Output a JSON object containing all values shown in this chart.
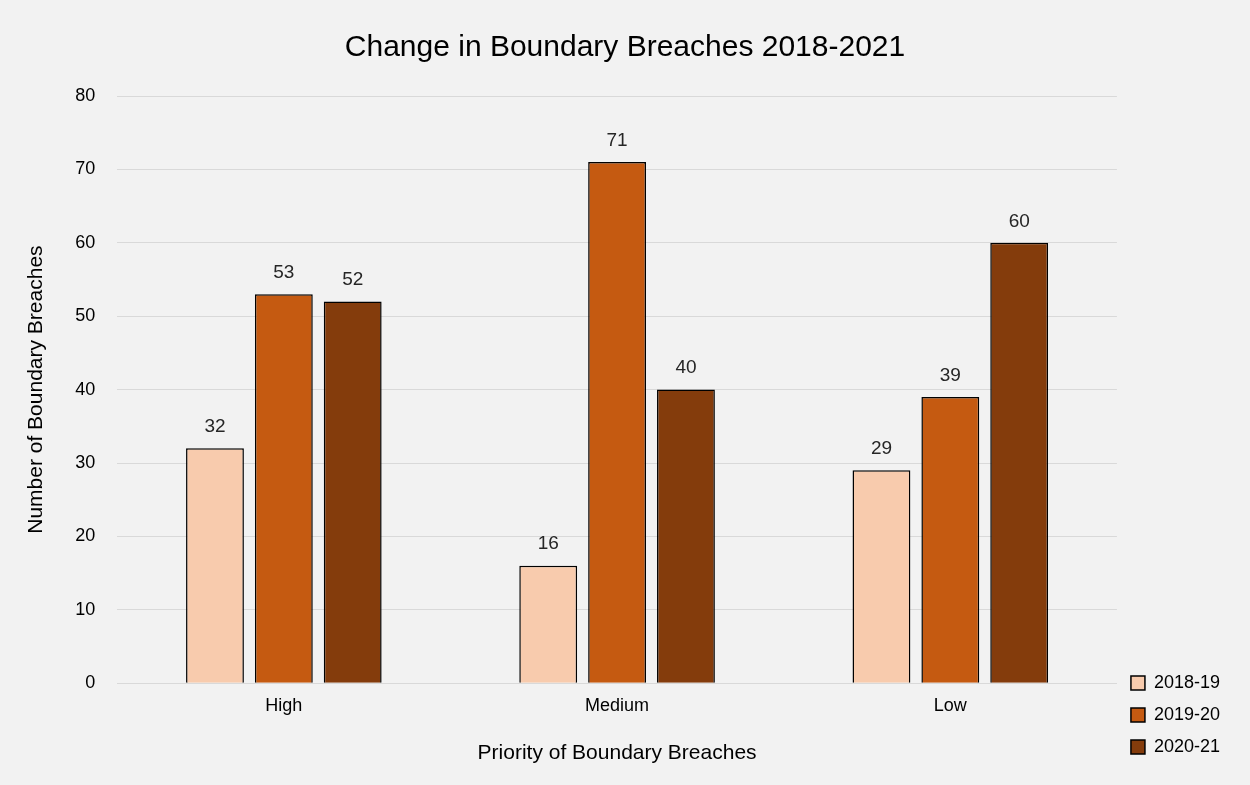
{
  "chart_data": {
    "type": "bar",
    "title": "Change in Boundary Breaches 2018-2021",
    "xlabel": "Priority of Boundary Breaches",
    "ylabel": "Number of Boundary Breaches",
    "categories": [
      "High",
      "Medium",
      "Low"
    ],
    "series": [
      {
        "name": "2018-19",
        "color": "#f8cbad",
        "values": [
          32,
          16,
          29
        ]
      },
      {
        "name": "2019-20",
        "color": "#c55a11",
        "values": [
          53,
          71,
          39
        ]
      },
      {
        "name": "2020-21",
        "color": "#843c0c",
        "values": [
          52,
          40,
          60
        ]
      }
    ],
    "ylim": [
      0,
      80
    ],
    "yticks": [
      0,
      10,
      20,
      30,
      40,
      50,
      60,
      70,
      80
    ],
    "grid": "y",
    "legend": "right",
    "data_labels": true
  }
}
